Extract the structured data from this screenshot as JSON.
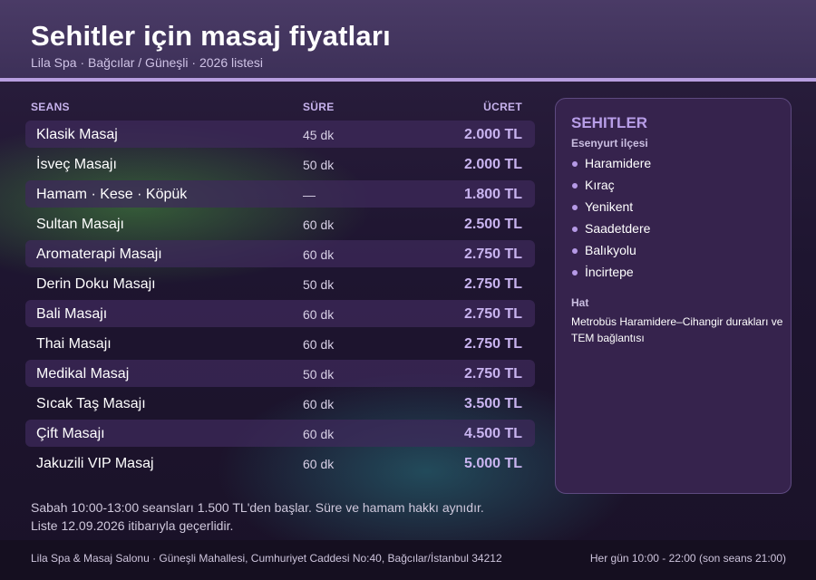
{
  "header": {
    "title": "Sehitler için masaj fiyatları",
    "subtitle": "Lila Spa · Bağcılar / Güneşli · 2026 listesi"
  },
  "table": {
    "columns": {
      "session": "SEANS",
      "duration": "SÜRE",
      "price": "ÜCRET"
    },
    "rows": [
      {
        "name": "Klasik Masaj",
        "duration": "45 dk",
        "price": "2.000 TL"
      },
      {
        "name": "İsveç Masajı",
        "duration": "50 dk",
        "price": "2.000 TL"
      },
      {
        "name": "Hamam · Kese · Köpük",
        "duration": "—",
        "price": "1.800 TL"
      },
      {
        "name": "Sultan Masajı",
        "duration": "60 dk",
        "price": "2.500 TL"
      },
      {
        "name": "Aromaterapi Masajı",
        "duration": "60 dk",
        "price": "2.750 TL"
      },
      {
        "name": "Derin Doku Masajı",
        "duration": "50 dk",
        "price": "2.750 TL"
      },
      {
        "name": "Bali Masajı",
        "duration": "60 dk",
        "price": "2.750 TL"
      },
      {
        "name": "Thai Masajı",
        "duration": "60 dk",
        "price": "2.750 TL"
      },
      {
        "name": "Medikal Masaj",
        "duration": "50 dk",
        "price": "2.750 TL"
      },
      {
        "name": "Sıcak Taş Masajı",
        "duration": "60 dk",
        "price": "3.500 TL"
      },
      {
        "name": "Çift Masajı",
        "duration": "60 dk",
        "price": "4.500 TL"
      },
      {
        "name": "Jakuzili VIP Masaj",
        "duration": "60 dk",
        "price": "5.000 TL"
      }
    ]
  },
  "notes": {
    "line1": "Sabah 10:00-13:00 seansları 1.500 TL'den başlar. Süre ve hamam hakkı aynıdır.",
    "line2": "Liste 12.09.2026 itibarıyla geçerlidir."
  },
  "panel": {
    "title": "SEHITLER",
    "district": "Esenyurt ilçesi",
    "neighborhoods": [
      "Haramidere",
      "Kıraç",
      "Yenikent",
      "Saadetdere",
      "Balıkyolu",
      "İncirtepe"
    ],
    "hat_label": "Hat",
    "hat_text": "Metrobüs Haramidere–Cihangir durakları ve TEM bağlantısı"
  },
  "footer": {
    "address": "Lila Spa & Masaj Salonu · Güneşli Mahallesi, Cumhuriyet Caddesi No:40, Bağcılar/İstanbul 34212",
    "hours": "Her gün 10:00 - 22:00 (son seans 21:00)"
  },
  "colors": {
    "header_bg": "#3d3058",
    "accent": "#b89ee0",
    "price": "#c9b4f0",
    "panel_bg": "#36234d",
    "footer_bg": "#150f20"
  }
}
